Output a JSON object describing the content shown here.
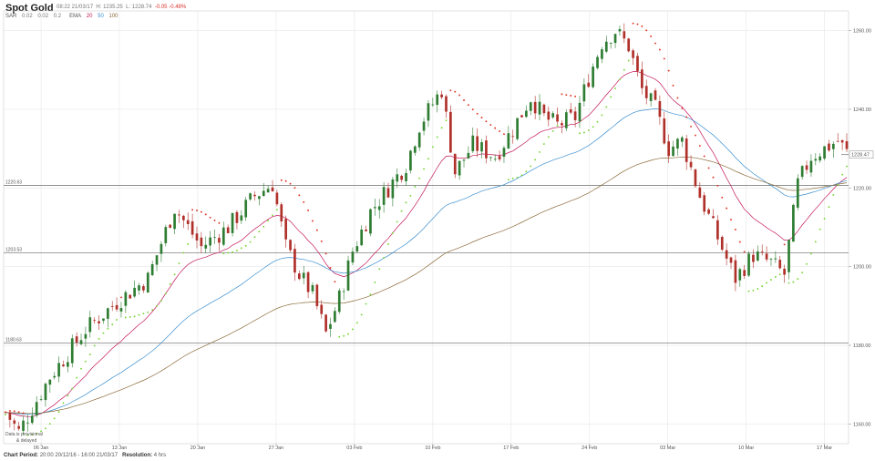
{
  "header": {
    "title": "Spot Gold",
    "time": "08:22 21/03/17",
    "high_label": "H:",
    "high": "1235.25",
    "low_label": "L:",
    "low": "1228.74",
    "change": "-0.05",
    "change_pct": "-0.48%",
    "sar_label": "SAR",
    "sar_params": [
      "0.02",
      "0.02",
      "0.2"
    ],
    "ema_label": "EMA",
    "ema_params": [
      "20",
      "50",
      "100"
    ]
  },
  "footer": {
    "period_label": "Chart Period:",
    "period": "20:00 20/12/16 - 16:00 21/03/17",
    "resolution_label": "Resolution:",
    "resolution": "4 hrs"
  },
  "annotation": {
    "text": "Data is provisional",
    "subtext": "& delayed"
  },
  "colors": {
    "up": "#2e7d32",
    "down": "#b0302a",
    "sar_up": "#7dd63a",
    "sar_down": "#e03424",
    "ema20": "#c2185b",
    "ema50": "#3a8fd0",
    "ema100": "#8a6a3a",
    "grid": "#e7e7e7",
    "hline": "#6b6b6b"
  },
  "chart_data": {
    "type": "candlestick",
    "title": "Spot Gold",
    "y_ticks": [
      "1160.00",
      "1180.00",
      "1200.00",
      "1220.00",
      "1240.00",
      "1260.00"
    ],
    "ylim": [
      1155,
      1265
    ],
    "x_ticks": [
      "06 Jan",
      "13 Jan",
      "20 Jan",
      "27 Jan",
      "03 Feb",
      "10 Feb",
      "17 Feb",
      "24 Feb",
      "03 Mar",
      "10 Mar",
      "17 Mar"
    ],
    "last_price": "1228.47",
    "horizontal_lines": [
      {
        "value": 1220.63,
        "label": "1220.63"
      },
      {
        "value": 1203.53,
        "label": "1203.53"
      },
      {
        "value": 1180.63,
        "label": "1180.63"
      }
    ],
    "price_path": [
      [
        0,
        1163
      ],
      [
        3,
        1158
      ],
      [
        10,
        1172
      ],
      [
        18,
        1184
      ],
      [
        25,
        1191
      ],
      [
        32,
        1197
      ],
      [
        38,
        1215
      ],
      [
        44,
        1205
      ],
      [
        50,
        1210
      ],
      [
        56,
        1218
      ],
      [
        60,
        1221
      ],
      [
        63,
        1205
      ],
      [
        66,
        1198
      ],
      [
        69,
        1193
      ],
      [
        72,
        1183
      ],
      [
        75,
        1192
      ],
      [
        78,
        1204
      ],
      [
        82,
        1214
      ],
      [
        86,
        1220
      ],
      [
        90,
        1226
      ],
      [
        93,
        1236
      ],
      [
        98,
        1245
      ],
      [
        101,
        1224
      ],
      [
        105,
        1231
      ],
      [
        110,
        1228
      ],
      [
        114,
        1235
      ],
      [
        118,
        1243
      ],
      [
        121,
        1238
      ],
      [
        124,
        1236
      ],
      [
        128,
        1238
      ],
      [
        131,
        1248
      ],
      [
        134,
        1257
      ],
      [
        137,
        1260
      ],
      [
        140,
        1256
      ],
      [
        143,
        1245
      ],
      [
        146,
        1240
      ],
      [
        149,
        1230
      ],
      [
        152,
        1232
      ],
      [
        156,
        1218
      ],
      [
        159,
        1210
      ],
      [
        162,
        1202
      ],
      [
        164,
        1197
      ],
      [
        168,
        1203
      ],
      [
        172,
        1201
      ],
      [
        175,
        1198
      ],
      [
        178,
        1221
      ],
      [
        181,
        1228
      ],
      [
        184,
        1230
      ],
      [
        187,
        1232
      ],
      [
        189,
        1229
      ]
    ],
    "candle_count": 190,
    "ema_periods": [
      20,
      50,
      100
    ],
    "sar_params": [
      0.02,
      0.02,
      0.2
    ]
  }
}
